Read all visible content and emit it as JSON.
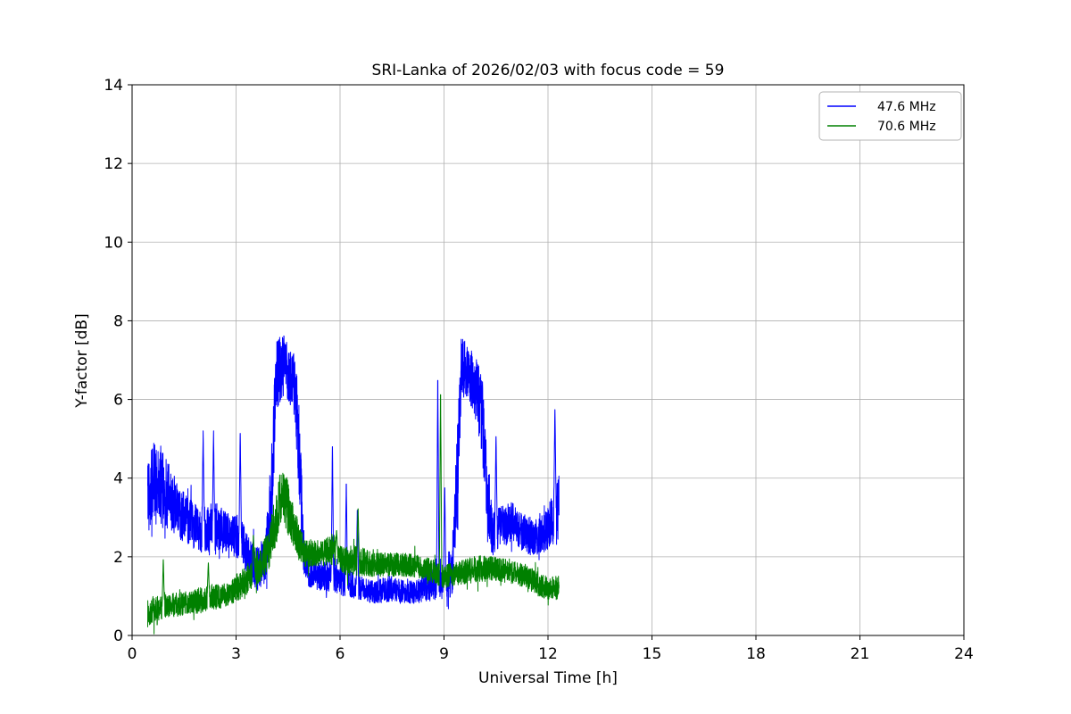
{
  "chart_data": {
    "type": "line",
    "title": "SRI-Lanka of 2026/02/03 with focus code = 59",
    "xlabel": "Universal Time [h]",
    "ylabel": "Y-factor [dB]",
    "xlim": [
      0,
      24
    ],
    "ylim": [
      0,
      14
    ],
    "xticks": [
      0,
      3,
      6,
      9,
      12,
      15,
      18,
      21,
      24
    ],
    "yticks": [
      0,
      2,
      4,
      6,
      8,
      10,
      12,
      14
    ],
    "grid": true,
    "grid_color": "#b0b0b0",
    "axes_background": "#ffffff",
    "spine_color": "#000000",
    "legend": {
      "position": "upper right",
      "border_color": "#b3b3b3",
      "entries": [
        {
          "label": "47.6 MHz",
          "color": "#0000ff"
        },
        {
          "label": "70.6 MHz",
          "color": "#008000"
        }
      ]
    },
    "render": {
      "dt": 0.004,
      "spike_width": 0.035
    },
    "series": [
      {
        "name": "47.6 MHz",
        "color": "#0000ff",
        "seed": 42,
        "t_start": 0.45,
        "t_end": 12.32,
        "envelope": [
          [
            0.45,
            3.6,
            1.0
          ],
          [
            0.6,
            3.9,
            1.0
          ],
          [
            0.8,
            3.8,
            1.1
          ],
          [
            1.0,
            3.6,
            0.9
          ],
          [
            1.3,
            3.2,
            0.7
          ],
          [
            1.6,
            2.9,
            0.6
          ],
          [
            2.0,
            2.7,
            0.6
          ],
          [
            2.4,
            2.7,
            0.7
          ],
          [
            2.8,
            2.6,
            0.5
          ],
          [
            3.1,
            2.5,
            0.6
          ],
          [
            3.35,
            2.0,
            0.5
          ],
          [
            3.6,
            1.7,
            0.6
          ],
          [
            3.85,
            1.9,
            0.6
          ],
          [
            4.05,
            4.0,
            1.2
          ],
          [
            4.15,
            6.6,
            0.9
          ],
          [
            4.35,
            6.9,
            0.8
          ],
          [
            4.55,
            6.6,
            0.7
          ],
          [
            4.7,
            6.3,
            0.9
          ],
          [
            4.8,
            5.0,
            1.2
          ],
          [
            4.95,
            2.2,
            0.7
          ],
          [
            5.1,
            1.6,
            0.4
          ],
          [
            5.4,
            1.5,
            0.35
          ],
          [
            5.7,
            1.5,
            0.4
          ],
          [
            6.0,
            1.4,
            0.4
          ],
          [
            6.3,
            1.3,
            0.35
          ],
          [
            6.6,
            1.2,
            0.3
          ],
          [
            7.0,
            1.1,
            0.3
          ],
          [
            7.4,
            1.2,
            0.35
          ],
          [
            7.8,
            1.1,
            0.3
          ],
          [
            8.2,
            1.1,
            0.3
          ],
          [
            8.6,
            1.3,
            0.4
          ],
          [
            9.0,
            1.3,
            0.4
          ],
          [
            9.25,
            1.6,
            0.6
          ],
          [
            9.4,
            4.5,
            1.5
          ],
          [
            9.5,
            6.9,
            0.7
          ],
          [
            9.7,
            6.7,
            0.7
          ],
          [
            9.9,
            6.3,
            0.8
          ],
          [
            10.1,
            5.6,
            1.0
          ],
          [
            10.25,
            3.5,
            0.9
          ],
          [
            10.4,
            2.6,
            0.6
          ],
          [
            10.7,
            2.8,
            0.5
          ],
          [
            11.0,
            2.9,
            0.5
          ],
          [
            11.3,
            2.6,
            0.5
          ],
          [
            11.6,
            2.5,
            0.5
          ],
          [
            11.9,
            2.6,
            0.5
          ],
          [
            12.1,
            2.9,
            0.6
          ],
          [
            12.25,
            3.2,
            0.9
          ],
          [
            12.32,
            3.3,
            0.8
          ]
        ],
        "spikes": [
          [
            2.05,
            5.2
          ],
          [
            2.35,
            5.2
          ],
          [
            3.12,
            5.3
          ],
          [
            5.78,
            5.0
          ],
          [
            6.18,
            4.0
          ],
          [
            6.5,
            3.3
          ],
          [
            8.82,
            6.8
          ],
          [
            9.02,
            3.9
          ],
          [
            10.5,
            5.2
          ],
          [
            12.2,
            5.9
          ]
        ]
      },
      {
        "name": "70.6 MHz",
        "color": "#008000",
        "seed": 7,
        "t_start": 0.45,
        "t_end": 12.32,
        "envelope": [
          [
            0.45,
            0.55,
            0.35
          ],
          [
            0.7,
            0.65,
            0.35
          ],
          [
            1.0,
            0.75,
            0.3
          ],
          [
            1.4,
            0.8,
            0.3
          ],
          [
            1.8,
            0.85,
            0.3
          ],
          [
            2.2,
            0.95,
            0.35
          ],
          [
            2.6,
            1.0,
            0.3
          ],
          [
            3.0,
            1.2,
            0.35
          ],
          [
            3.4,
            1.5,
            0.4
          ],
          [
            3.7,
            1.8,
            0.45
          ],
          [
            3.95,
            2.2,
            0.5
          ],
          [
            4.15,
            3.0,
            0.7
          ],
          [
            4.3,
            3.6,
            0.8
          ],
          [
            4.45,
            3.4,
            0.7
          ],
          [
            4.6,
            2.9,
            0.6
          ],
          [
            4.8,
            2.4,
            0.45
          ],
          [
            5.0,
            2.1,
            0.35
          ],
          [
            5.4,
            2.1,
            0.35
          ],
          [
            5.8,
            2.2,
            0.4
          ],
          [
            6.1,
            1.9,
            0.35
          ],
          [
            6.5,
            1.9,
            0.4
          ],
          [
            7.0,
            1.8,
            0.3
          ],
          [
            7.5,
            1.8,
            0.3
          ],
          [
            8.0,
            1.8,
            0.3
          ],
          [
            8.5,
            1.7,
            0.3
          ],
          [
            9.0,
            1.5,
            0.3
          ],
          [
            9.5,
            1.6,
            0.3
          ],
          [
            10.0,
            1.7,
            0.35
          ],
          [
            10.5,
            1.7,
            0.3
          ],
          [
            11.0,
            1.6,
            0.3
          ],
          [
            11.4,
            1.5,
            0.3
          ],
          [
            11.8,
            1.25,
            0.3
          ],
          [
            12.1,
            1.2,
            0.3
          ],
          [
            12.32,
            1.2,
            0.35
          ]
        ],
        "spikes": [
          [
            0.9,
            2.0
          ],
          [
            2.2,
            1.9
          ],
          [
            3.5,
            2.6
          ],
          [
            5.9,
            2.7
          ],
          [
            6.52,
            3.3
          ],
          [
            8.9,
            6.4
          ]
        ]
      }
    ]
  }
}
